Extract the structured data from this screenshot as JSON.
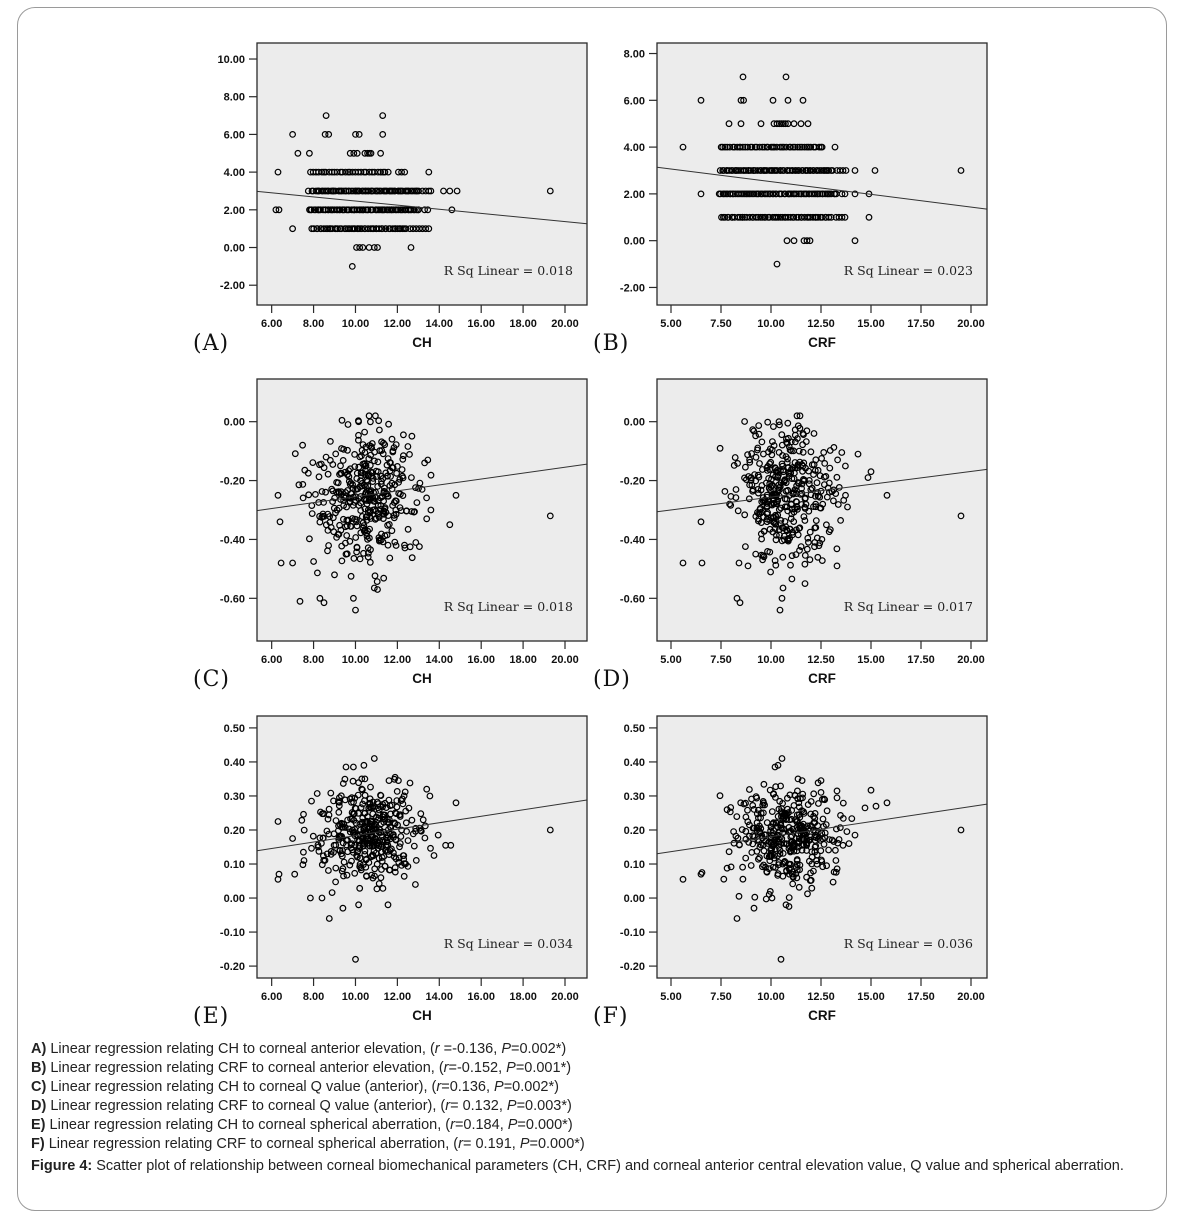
{
  "colors": {
    "plot_bg": "#ececec",
    "axis": "#2a2a2a",
    "ink": "#000000",
    "line": "#333333",
    "frame_border": "#9a9a9a"
  },
  "figure": {
    "legend_lines": [
      {
        "segments": [
          [
            "A)",
            "b"
          ],
          [
            " Linear regression relating CH to corneal anterior elevation, (",
            ""
          ],
          [
            "r",
            "i"
          ],
          [
            " =-0.136, ",
            ""
          ],
          [
            "P",
            "i"
          ],
          [
            "=0.002*)",
            ""
          ]
        ]
      },
      {
        "segments": [
          [
            "B)",
            "b"
          ],
          [
            " Linear regression relating CRF to corneal anterior elevation, (",
            ""
          ],
          [
            "r",
            "i"
          ],
          [
            "=-0.152, ",
            ""
          ],
          [
            "P",
            "i"
          ],
          [
            "=0.001*)",
            ""
          ]
        ]
      },
      {
        "segments": [
          [
            "C)",
            "b"
          ],
          [
            " Linear regression relating CH to corneal Q value (anterior), (",
            ""
          ],
          [
            "r",
            "i"
          ],
          [
            "=0.136, ",
            ""
          ],
          [
            "P",
            "i"
          ],
          [
            "=0.002*)",
            ""
          ]
        ]
      },
      {
        "segments": [
          [
            "D)",
            "b"
          ],
          [
            " Linear regression relating CRF to corneal Q value (anterior), (",
            ""
          ],
          [
            "r",
            "i"
          ],
          [
            "= 0.132, ",
            ""
          ],
          [
            "P",
            "i"
          ],
          [
            "=0.003*)",
            ""
          ]
        ]
      },
      {
        "segments": [
          [
            "E)",
            "b"
          ],
          [
            " Linear regression relating CH to corneal spherical aberration, (",
            ""
          ],
          [
            "r",
            "i"
          ],
          [
            "=0.184, ",
            ""
          ],
          [
            "P",
            "i"
          ],
          [
            "=0.000*)",
            ""
          ]
        ]
      },
      {
        "segments": [
          [
            "F)",
            "b"
          ],
          [
            " Linear regression relating CRF to corneal spherical aberration, (",
            ""
          ],
          [
            "r",
            "i"
          ],
          [
            "= 0.191, ",
            ""
          ],
          [
            "P",
            "i"
          ],
          [
            "=0.000*)",
            ""
          ]
        ]
      }
    ],
    "caption": {
      "label": "Figure 4:",
      "text": "Scatter plot of relationship between corneal biomechanical parameters (CH, CRF) and corneal anterior central elevation value, Q value and spherical aberration."
    }
  },
  "chart_data": [
    {
      "id": "A",
      "panel_label": "(A)",
      "type": "scatter",
      "xlabel": "CH",
      "xlim": [
        5.3,
        21.05
      ],
      "x_ticks": [
        6,
        8,
        10,
        12,
        14,
        16,
        18,
        20
      ],
      "x_tick_labels": [
        "6.00",
        "8.00",
        "10.00",
        "12.00",
        "14.00",
        "16.00",
        "18.00",
        "20.00"
      ],
      "ylim": [
        -3.05,
        10.85
      ],
      "y_ticks": [
        10,
        8,
        6,
        4,
        2,
        0,
        -2
      ],
      "y_tick_labels": [
        "10.00",
        "8.00",
        "6.00",
        "4.00",
        "2.00",
        "0.00",
        "-2.00"
      ],
      "rows": [
        {
          "y": 7,
          "x": [
            8.6,
            11.3
          ]
        },
        {
          "y": 6,
          "x": [
            7.0,
            8.55,
            8.72,
            10.0,
            10.18,
            11.3
          ]
        },
        {
          "y": 5,
          "x": [
            7.25,
            7.8,
            9.75,
            9.92,
            10.08,
            10.45,
            10.58,
            10.66,
            10.74,
            11.2
          ]
        },
        {
          "y": 4,
          "x": [
            6.3,
            12.05,
            12.2,
            12.35,
            13.5
          ],
          "span": [
            7.85,
            11.55
          ],
          "n": 30
        },
        {
          "y": 3,
          "x": [
            7.75,
            13.2,
            13.35,
            13.5,
            13.6,
            14.2,
            14.5,
            14.85,
            19.3
          ],
          "span": [
            7.95,
            13.0
          ],
          "n": 72
        },
        {
          "y": 2,
          "x": [
            6.2,
            6.35,
            13.3,
            13.45,
            14.6
          ],
          "span": [
            7.8,
            13.05
          ],
          "n": 75
        },
        {
          "y": 1,
          "x": [
            7.0,
            12.6,
            12.75,
            12.9,
            13.05,
            13.2,
            13.35,
            13.5
          ],
          "span": [
            7.95,
            12.45
          ],
          "n": 52
        },
        {
          "y": 0,
          "x": [
            10.05,
            10.2,
            10.35,
            10.65,
            10.9,
            11.05,
            12.65
          ]
        },
        {
          "y": -1,
          "x": [
            9.85
          ]
        }
      ],
      "regression": {
        "x1": 5.3,
        "y1": 2.98,
        "x2": 21.05,
        "y2": 1.26
      },
      "rsq_label": "R Sq Linear = 0.018",
      "seed": 11
    },
    {
      "id": "B",
      "panel_label": "(B)",
      "type": "scatter",
      "xlabel": "CRF",
      "xlim": [
        4.3,
        20.8
      ],
      "x_ticks": [
        5,
        7.5,
        10,
        12.5,
        15,
        17.5,
        20
      ],
      "x_tick_labels": [
        "5.00",
        "7.50",
        "10.00",
        "12.50",
        "15.00",
        "17.50",
        "20.00"
      ],
      "ylim": [
        -2.75,
        8.45
      ],
      "y_ticks": [
        8,
        6,
        4,
        2,
        0,
        -2
      ],
      "y_tick_labels": [
        "8.00",
        "6.00",
        "4.00",
        "2.00",
        "0.00",
        "-2.00"
      ],
      "rows": [
        {
          "y": 7,
          "x": [
            8.6,
            10.75
          ]
        },
        {
          "y": 6,
          "x": [
            6.5,
            8.5,
            8.63,
            10.1,
            10.85,
            11.6
          ]
        },
        {
          "y": 5,
          "x": [
            7.9,
            8.5,
            9.5,
            10.15,
            10.3,
            10.42,
            10.52,
            10.62,
            10.72,
            10.85,
            11.15,
            11.5,
            11.85
          ]
        },
        {
          "y": 4,
          "x": [
            5.6,
            13.2
          ],
          "span": [
            7.5,
            12.6
          ],
          "n": 46
        },
        {
          "y": 3,
          "x": [
            13.3,
            13.45,
            13.6,
            13.75,
            14.2,
            15.2,
            19.5
          ],
          "span": [
            7.5,
            13.1
          ],
          "n": 68
        },
        {
          "y": 2,
          "x": [
            6.5,
            13.55,
            13.7,
            14.2,
            14.9
          ],
          "span": [
            7.4,
            13.3
          ],
          "n": 72
        },
        {
          "y": 1,
          "x": [
            13.25,
            13.4,
            13.55,
            13.7,
            14.9
          ],
          "span": [
            7.5,
            13.0
          ],
          "n": 55
        },
        {
          "y": 0,
          "x": [
            10.8,
            11.15,
            11.65,
            11.8,
            11.95,
            14.2
          ]
        },
        {
          "y": -1,
          "x": [
            10.3
          ]
        }
      ],
      "regression": {
        "x1": 4.3,
        "y1": 3.14,
        "x2": 20.8,
        "y2": 1.35
      },
      "rsq_label": "R Sq Linear = 0.023",
      "seed": 22
    },
    {
      "id": "C",
      "panel_label": "(C)",
      "type": "scatter",
      "xlabel": "CH",
      "xlim": [
        5.3,
        21.05
      ],
      "x_ticks": [
        6,
        8,
        10,
        12,
        14,
        16,
        18,
        20
      ],
      "x_tick_labels": [
        "6.00",
        "8.00",
        "10.00",
        "12.00",
        "14.00",
        "16.00",
        "18.00",
        "20.00"
      ],
      "ylim": [
        -0.745,
        0.145
      ],
      "y_ticks": [
        0,
        -0.2,
        -0.4,
        -0.6
      ],
      "y_tick_labels": [
        "0.00",
        "-0.20",
        "-0.40",
        "-0.60"
      ],
      "cloud": {
        "count": 380,
        "cx": 10.45,
        "cy": -0.253,
        "sx": 1.3,
        "sy": 0.112,
        "clip": [
          6.9,
          13.7,
          -0.555,
          0.005
        ]
      },
      "extra_points": [
        [
          6.3,
          -0.25
        ],
        [
          6.4,
          -0.34
        ],
        [
          6.45,
          -0.48
        ],
        [
          7.0,
          -0.48
        ],
        [
          7.35,
          -0.61
        ],
        [
          8.0,
          -0.475
        ],
        [
          8.3,
          -0.6
        ],
        [
          8.5,
          -0.615
        ],
        [
          9.0,
          -0.52
        ],
        [
          9.9,
          -0.6
        ],
        [
          10.0,
          -0.64
        ],
        [
          10.9,
          -0.565
        ],
        [
          11.05,
          -0.57
        ],
        [
          13.4,
          -0.33
        ],
        [
          13.6,
          -0.3
        ],
        [
          14.5,
          -0.35
        ],
        [
          14.8,
          -0.25
        ],
        [
          19.3,
          -0.32
        ],
        [
          10.65,
          0.02
        ],
        [
          10.95,
          0.02
        ],
        [
          10.15,
          0.0
        ],
        [
          13.3,
          -0.14
        ],
        [
          13.45,
          -0.13
        ]
      ],
      "regression": {
        "x1": 5.3,
        "y1": -0.302,
        "x2": 21.05,
        "y2": -0.144
      },
      "rsq_label": "R Sq Linear = 0.018",
      "seed": 33
    },
    {
      "id": "D",
      "panel_label": "(D)",
      "type": "scatter",
      "xlabel": "CRF",
      "xlim": [
        4.3,
        20.8
      ],
      "x_ticks": [
        5,
        7.5,
        10,
        12.5,
        15,
        17.5,
        20
      ],
      "x_tick_labels": [
        "5.00",
        "7.50",
        "10.00",
        "12.50",
        "15.00",
        "17.50",
        "20.00"
      ],
      "ylim": [
        -0.745,
        0.145
      ],
      "y_ticks": [
        0,
        -0.2,
        -0.4,
        -0.6
      ],
      "y_tick_labels": [
        "0.00",
        "-0.20",
        "-0.40",
        "-0.60"
      ],
      "cloud": {
        "count": 380,
        "cx": 10.75,
        "cy": -0.253,
        "sx": 1.3,
        "sy": 0.112,
        "clip": [
          7.3,
          14.1,
          -0.555,
          0.005
        ]
      },
      "extra_points": [
        [
          5.6,
          -0.48
        ],
        [
          6.5,
          -0.34
        ],
        [
          6.55,
          -0.48
        ],
        [
          8.3,
          -0.6
        ],
        [
          8.45,
          -0.615
        ],
        [
          8.4,
          -0.48
        ],
        [
          8.85,
          -0.49
        ],
        [
          10.45,
          -0.64
        ],
        [
          10.55,
          -0.6
        ],
        [
          10.6,
          -0.565
        ],
        [
          11.7,
          -0.55
        ],
        [
          13.3,
          -0.49
        ],
        [
          14.35,
          -0.11
        ],
        [
          14.85,
          -0.19
        ],
        [
          15.0,
          -0.17
        ],
        [
          15.8,
          -0.25
        ],
        [
          19.5,
          -0.32
        ],
        [
          11.3,
          0.02
        ],
        [
          11.45,
          0.02
        ],
        [
          10.4,
          0.0
        ],
        [
          11.6,
          -0.04
        ],
        [
          12.15,
          -0.04
        ]
      ],
      "regression": {
        "x1": 4.3,
        "y1": -0.306,
        "x2": 20.8,
        "y2": -0.162
      },
      "rsq_label": "R Sq Linear = 0.017",
      "seed": 44
    },
    {
      "id": "E",
      "panel_label": "(E)",
      "type": "scatter",
      "xlabel": "CH",
      "xlim": [
        5.3,
        21.05
      ],
      "x_ticks": [
        6,
        8,
        10,
        12,
        14,
        16,
        18,
        20
      ],
      "x_tick_labels": [
        "6.00",
        "8.00",
        "10.00",
        "12.00",
        "14.00",
        "16.00",
        "18.00",
        "20.00"
      ],
      "ylim": [
        -0.235,
        0.535
      ],
      "y_ticks": [
        0.5,
        0.4,
        0.3,
        0.2,
        0.1,
        0,
        -0.1,
        -0.2
      ],
      "y_tick_labels": [
        "0.50",
        "0.40",
        "0.30",
        "0.20",
        "0.10",
        "0.00",
        "-0.10",
        "-0.20"
      ],
      "cloud": {
        "count": 380,
        "cx": 10.55,
        "cy": 0.188,
        "sx": 1.25,
        "sy": 0.072,
        "clip": [
          7.4,
          13.6,
          -0.005,
          0.355
        ]
      },
      "extra_points": [
        [
          10.0,
          -0.18
        ],
        [
          19.3,
          0.2
        ],
        [
          14.8,
          0.28
        ],
        [
          10.9,
          0.41
        ],
        [
          10.4,
          0.39
        ],
        [
          9.9,
          0.385
        ],
        [
          9.55,
          0.385
        ],
        [
          11.6,
          0.345
        ],
        [
          10.3,
          0.35
        ],
        [
          10.45,
          0.35
        ],
        [
          12.05,
          0.345
        ],
        [
          8.75,
          -0.06
        ],
        [
          9.4,
          -0.03
        ],
        [
          10.15,
          -0.02
        ],
        [
          11.55,
          -0.02
        ],
        [
          7.85,
          0.0
        ],
        [
          8.4,
          0.0
        ],
        [
          13.95,
          0.185
        ],
        [
          14.3,
          0.155
        ],
        [
          14.55,
          0.155
        ],
        [
          13.75,
          0.125
        ],
        [
          6.3,
          0.225
        ],
        [
          7.0,
          0.175
        ],
        [
          6.3,
          0.055
        ],
        [
          6.35,
          0.07
        ],
        [
          7.1,
          0.07
        ],
        [
          7.9,
          0.285
        ],
        [
          13.4,
          0.32
        ],
        [
          13.55,
          0.3
        ]
      ],
      "regression": {
        "x1": 5.3,
        "y1": 0.139,
        "x2": 21.05,
        "y2": 0.288
      },
      "rsq_label": "R Sq Linear = 0.034",
      "seed": 55
    },
    {
      "id": "F",
      "panel_label": "(F)",
      "type": "scatter",
      "xlabel": "CRF",
      "xlim": [
        4.3,
        20.8
      ],
      "x_ticks": [
        5,
        7.5,
        10,
        12.5,
        15,
        17.5,
        20
      ],
      "x_tick_labels": [
        "5.00",
        "7.50",
        "10.00",
        "12.50",
        "15.00",
        "17.50",
        "20.00"
      ],
      "ylim": [
        -0.235,
        0.535
      ],
      "y_ticks": [
        0.5,
        0.4,
        0.3,
        0.2,
        0.1,
        0,
        -0.1,
        -0.2
      ],
      "y_tick_labels": [
        "0.50",
        "0.40",
        "0.30",
        "0.20",
        "0.10",
        "0.00",
        "-0.10",
        "-0.20"
      ],
      "cloud": {
        "count": 380,
        "cx": 10.85,
        "cy": 0.185,
        "sx": 1.3,
        "sy": 0.072,
        "clip": [
          7.4,
          14.1,
          -0.005,
          0.355
        ]
      },
      "extra_points": [
        [
          10.5,
          -0.18
        ],
        [
          19.5,
          0.2
        ],
        [
          15.8,
          0.28
        ],
        [
          15.0,
          0.317
        ],
        [
          14.7,
          0.265
        ],
        [
          15.25,
          0.27
        ],
        [
          10.55,
          0.41
        ],
        [
          10.35,
          0.39
        ],
        [
          10.2,
          0.385
        ],
        [
          11.35,
          0.35
        ],
        [
          12.5,
          0.345
        ],
        [
          13.3,
          0.315
        ],
        [
          5.6,
          0.055
        ],
        [
          6.5,
          0.07
        ],
        [
          6.55,
          0.075
        ],
        [
          8.3,
          -0.06
        ],
        [
          9.15,
          -0.03
        ],
        [
          10.75,
          -0.02
        ],
        [
          10.9,
          -0.025
        ],
        [
          10.05,
          0.0
        ],
        [
          8.4,
          0.005
        ],
        [
          13.9,
          0.16
        ],
        [
          14.2,
          0.185
        ],
        [
          13.6,
          0.155
        ]
      ],
      "regression": {
        "x1": 4.3,
        "y1": 0.13,
        "x2": 20.8,
        "y2": 0.276
      },
      "rsq_label": "R Sq Linear = 0.036",
      "seed": 66
    }
  ]
}
